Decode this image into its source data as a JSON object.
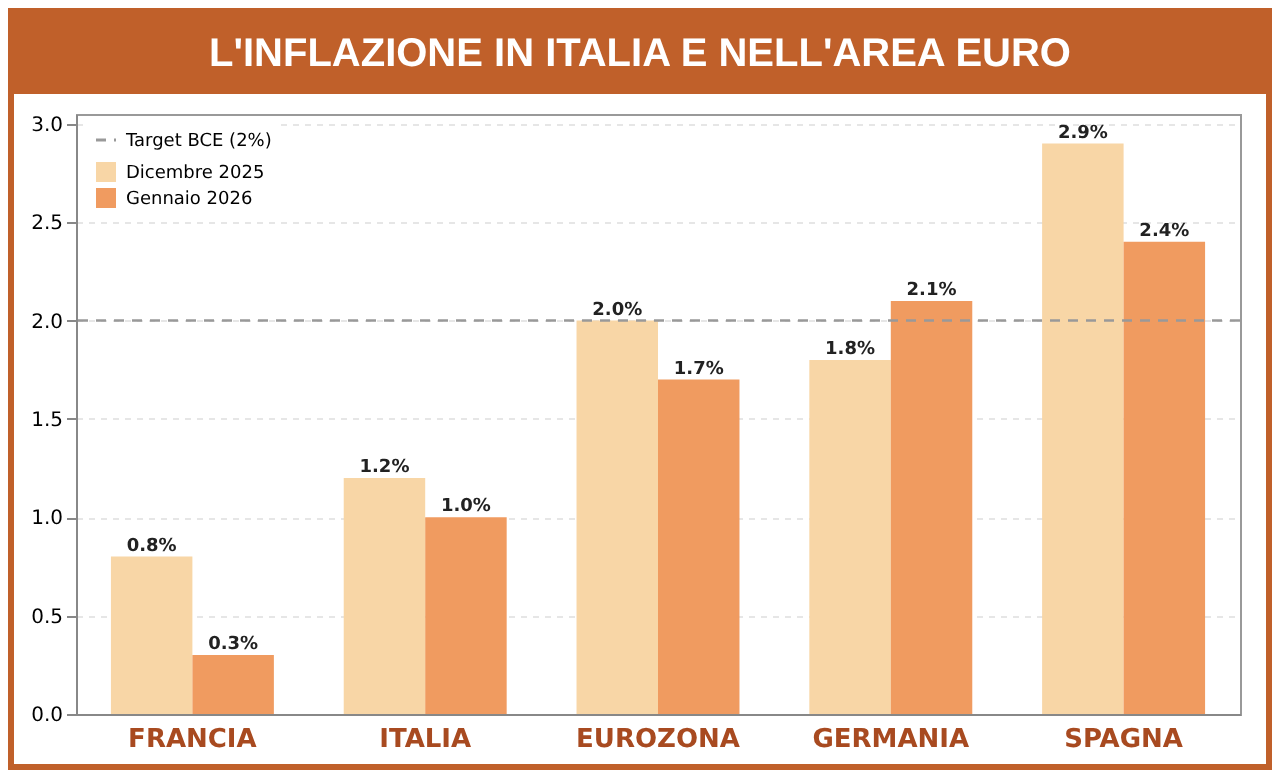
{
  "chart_data": {
    "type": "bar",
    "title": "L'INFLAZIONE IN ITALIA E NELL'AREA EURO",
    "categories": [
      "FRANCIA",
      "ITALIA",
      "EUROZONA",
      "GERMANIA",
      "SPAGNA"
    ],
    "series": [
      {
        "name": "Dicembre 2025",
        "color": "#f8d6a6",
        "values": [
          0.8,
          1.2,
          2.0,
          1.8,
          2.9
        ],
        "value_labels": [
          "0.8%",
          "1.2%",
          "2.0%",
          "1.8%",
          "2.9%"
        ]
      },
      {
        "name": "Gennaio 2026",
        "color": "#f09b60",
        "values": [
          0.3,
          1.0,
          1.7,
          2.1,
          2.4
        ],
        "value_labels": [
          "0.3%",
          "1.0%",
          "1.7%",
          "2.1%",
          "2.4%"
        ]
      }
    ],
    "ylim": [
      0,
      3.05
    ],
    "yticks": [
      {
        "value": 0,
        "label": "0.0"
      },
      {
        "value": 0.5,
        "label": "0.5"
      },
      {
        "value": 1,
        "label": "1.0"
      },
      {
        "value": 1.5,
        "label": "1.5"
      },
      {
        "value": 2,
        "label": "2.0"
      },
      {
        "value": 2.5,
        "label": "2.5"
      },
      {
        "value": 3,
        "label": "3.0"
      }
    ],
    "ref_lines": [
      {
        "axis": "y",
        "value": 2,
        "label": "Target BCE (2%)",
        "color": "#999999",
        "line_style": "dashed"
      }
    ],
    "grid": "y",
    "legend": "top left"
  }
}
